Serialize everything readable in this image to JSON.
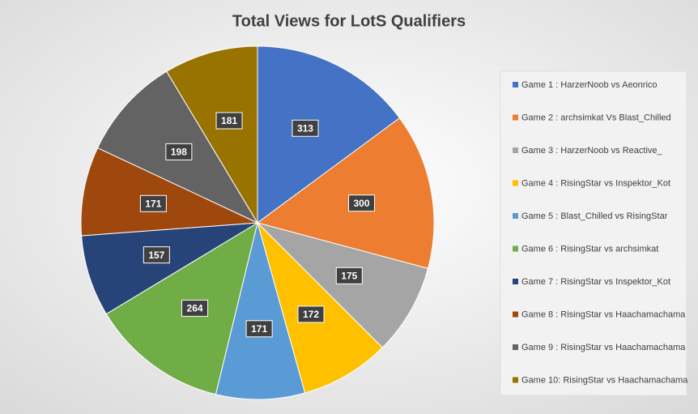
{
  "chart_data": {
    "type": "pie",
    "title": "Total Views for LotS Qualifiers",
    "categories": [
      "Game 1 : HarzerNoob vs Aeonrico",
      "Game 2 : archsimkat Vs Blast_Chilled",
      "Game 3 : HarzerNoob vs Reactive_",
      "Game 4 : RisingStar vs Inspektor_Kot",
      "Game 5 : Blast_Chilled vs RisingStar",
      "Game 6 : RisingStar vs archsimkat",
      "Game 7 : RisingStar vs Inspektor_Kot",
      "Game 8 : RisingStar vs Haachamachama",
      "Game 9 : RisingStar vs Haachamachama",
      "Game 10: RisingStar vs Haachamachama"
    ],
    "values": [
      313,
      300,
      175,
      172,
      171,
      264,
      157,
      171,
      198,
      181
    ],
    "colors": [
      "#4472c4",
      "#ed7d31",
      "#a5a5a5",
      "#ffc000",
      "#5b9bd5",
      "#70ad47",
      "#264478",
      "#9e480e",
      "#636363",
      "#997300"
    ],
    "legend": "right"
  }
}
